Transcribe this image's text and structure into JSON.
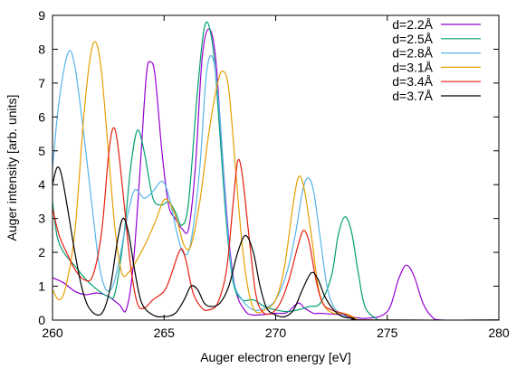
{
  "chart_data": {
    "type": "line",
    "title": "",
    "xlabel": "Auger electron energy [eV]",
    "ylabel": "Auger intensity [arb. units]",
    "xlim": [
      260,
      280
    ],
    "ylim": [
      0,
      9
    ],
    "xticks": [
      260,
      265,
      270,
      275,
      280
    ],
    "yticks": [
      0,
      1,
      2,
      3,
      4,
      5,
      6,
      7,
      8,
      9
    ],
    "grid": false,
    "legend_position": "top-right",
    "series": [
      {
        "name": "d=2.2Å",
        "color": "#9400d3",
        "points": [
          [
            260,
            1.25
          ],
          [
            260.5,
            1.1
          ],
          [
            261,
            0.85
          ],
          [
            261.5,
            0.75
          ],
          [
            262,
            0.8
          ],
          [
            262.5,
            0.7
          ],
          [
            263,
            0.45
          ],
          [
            263.3,
            0.3
          ],
          [
            263.6,
            1.5
          ],
          [
            263.9,
            4.2
          ],
          [
            264.2,
            7.2
          ],
          [
            264.4,
            7.62
          ],
          [
            264.6,
            7.2
          ],
          [
            264.9,
            5.0
          ],
          [
            265.2,
            3.4
          ],
          [
            265.5,
            3.0
          ],
          [
            265.8,
            2.7
          ],
          [
            266.1,
            2.7
          ],
          [
            266.4,
            4.5
          ],
          [
            266.7,
            7.7
          ],
          [
            267.0,
            8.6
          ],
          [
            267.3,
            7.8
          ],
          [
            267.6,
            5.0
          ],
          [
            267.9,
            2.4
          ],
          [
            268.2,
            0.9
          ],
          [
            268.6,
            0.3
          ],
          [
            269.0,
            0.15
          ],
          [
            270,
            0.2
          ],
          [
            270.5,
            0.22
          ],
          [
            271,
            0.5
          ],
          [
            271.3,
            0.35
          ],
          [
            271.7,
            0.2
          ],
          [
            272,
            0.2
          ],
          [
            273,
            0.15
          ],
          [
            274,
            0.05
          ],
          [
            275,
            0.25
          ],
          [
            275.5,
            1.2
          ],
          [
            275.85,
            1.62
          ],
          [
            276.2,
            1.3
          ],
          [
            276.6,
            0.5
          ],
          [
            277,
            0.1
          ],
          [
            277.5,
            0.0
          ],
          [
            280,
            0.0
          ]
        ]
      },
      {
        "name": "d=2.5Å",
        "color": "#009e73",
        "points": [
          [
            260,
            3.5
          ],
          [
            260.2,
            2.5
          ],
          [
            260.5,
            2.0
          ],
          [
            261,
            1.6
          ],
          [
            261.5,
            1.2
          ],
          [
            262,
            0.9
          ],
          [
            262.5,
            0.7
          ],
          [
            262.8,
            0.8
          ],
          [
            263.2,
            2.5
          ],
          [
            263.5,
            4.5
          ],
          [
            263.8,
            5.6
          ],
          [
            264.1,
            5.0
          ],
          [
            264.5,
            3.6
          ],
          [
            264.9,
            3.4
          ],
          [
            265.2,
            3.5
          ],
          [
            265.5,
            3.2
          ],
          [
            265.8,
            2.8
          ],
          [
            266.1,
            3.5
          ],
          [
            266.5,
            6.8
          ],
          [
            266.85,
            8.75
          ],
          [
            267.2,
            8.0
          ],
          [
            267.5,
            5.5
          ],
          [
            267.8,
            2.8
          ],
          [
            268.1,
            1.1
          ],
          [
            268.5,
            0.6
          ],
          [
            269,
            0.6
          ],
          [
            269.5,
            0.4
          ],
          [
            270,
            0.3
          ],
          [
            270.5,
            0.25
          ],
          [
            271,
            0.3
          ],
          [
            271.5,
            0.4
          ],
          [
            272,
            0.5
          ],
          [
            272.5,
            1.3
          ],
          [
            272.8,
            2.5
          ],
          [
            273.1,
            3.05
          ],
          [
            273.4,
            2.6
          ],
          [
            273.7,
            1.4
          ],
          [
            274,
            0.4
          ],
          [
            274.5,
            0.05
          ],
          [
            275,
            0.0
          ],
          [
            280,
            0.0
          ]
        ]
      },
      {
        "name": "d=2.8Å",
        "color": "#56b4e9",
        "points": [
          [
            260,
            4.5
          ],
          [
            260.3,
            6.5
          ],
          [
            260.7,
            7.9
          ],
          [
            261,
            7.5
          ],
          [
            261.4,
            5.5
          ],
          [
            261.8,
            3.2
          ],
          [
            262.1,
            1.6
          ],
          [
            262.4,
            0.9
          ],
          [
            262.7,
            1.0
          ],
          [
            263.0,
            1.8
          ],
          [
            263.4,
            3.2
          ],
          [
            263.7,
            3.85
          ],
          [
            264.1,
            3.6
          ],
          [
            264.5,
            3.8
          ],
          [
            264.9,
            4.1
          ],
          [
            265.2,
            3.7
          ],
          [
            265.6,
            2.5
          ],
          [
            265.9,
            1.95
          ],
          [
            266.2,
            2.3
          ],
          [
            266.6,
            4.5
          ],
          [
            266.9,
            7.3
          ],
          [
            267.2,
            7.7
          ],
          [
            267.5,
            6.0
          ],
          [
            267.8,
            3.0
          ],
          [
            268.1,
            1.2
          ],
          [
            268.5,
            0.6
          ],
          [
            269,
            0.3
          ],
          [
            269.5,
            0.35
          ],
          [
            270,
            0.6
          ],
          [
            270.5,
            1.4
          ],
          [
            270.9,
            2.6
          ],
          [
            271.2,
            3.8
          ],
          [
            271.45,
            4.2
          ],
          [
            271.7,
            3.8
          ],
          [
            272.0,
            2.4
          ],
          [
            272.3,
            1.0
          ],
          [
            272.6,
            0.4
          ],
          [
            273,
            0.15
          ],
          [
            273.5,
            0.05
          ],
          [
            274,
            0.0
          ],
          [
            280,
            0.0
          ]
        ]
      },
      {
        "name": "d=3.1Å",
        "color": "#e69f00",
        "points": [
          [
            260,
            0.9
          ],
          [
            260.3,
            0.6
          ],
          [
            260.6,
            1.0
          ],
          [
            261,
            2.6
          ],
          [
            261.4,
            6.0
          ],
          [
            261.7,
            7.8
          ],
          [
            261.95,
            8.2
          ],
          [
            262.2,
            7.3
          ],
          [
            262.5,
            5.0
          ],
          [
            262.8,
            2.7
          ],
          [
            263.1,
            1.4
          ],
          [
            263.4,
            1.4
          ],
          [
            263.8,
            1.8
          ],
          [
            264.2,
            2.3
          ],
          [
            264.6,
            2.9
          ],
          [
            265,
            3.55
          ],
          [
            265.3,
            3.4
          ],
          [
            265.6,
            2.9
          ],
          [
            265.9,
            2.2
          ],
          [
            266.2,
            2.2
          ],
          [
            266.6,
            3.5
          ],
          [
            267.0,
            5.5
          ],
          [
            267.4,
            7.0
          ],
          [
            267.65,
            7.35
          ],
          [
            267.9,
            6.8
          ],
          [
            268.2,
            4.5
          ],
          [
            268.5,
            2.2
          ],
          [
            268.8,
            0.8
          ],
          [
            269.1,
            0.25
          ],
          [
            269.5,
            0.3
          ],
          [
            270,
            0.6
          ],
          [
            270.4,
            1.6
          ],
          [
            270.8,
            3.5
          ],
          [
            271.05,
            4.25
          ],
          [
            271.3,
            3.8
          ],
          [
            271.6,
            2.5
          ],
          [
            271.9,
            1.0
          ],
          [
            272.2,
            0.4
          ],
          [
            272.6,
            0.2
          ],
          [
            273,
            0.2
          ],
          [
            273.3,
            0.15
          ],
          [
            273.6,
            0.05
          ],
          [
            274,
            0.0
          ],
          [
            280,
            0.0
          ]
        ]
      },
      {
        "name": "d=3.4Å",
        "color": "#e51e10",
        "points": [
          [
            260,
            3.3
          ],
          [
            260.3,
            2.5
          ],
          [
            260.7,
            1.9
          ],
          [
            261,
            1.5
          ],
          [
            261.4,
            1.2
          ],
          [
            261.8,
            1.3
          ],
          [
            262.2,
            2.6
          ],
          [
            262.5,
            4.8
          ],
          [
            262.7,
            5.65
          ],
          [
            262.9,
            5.3
          ],
          [
            263.2,
            3.5
          ],
          [
            263.5,
            1.6
          ],
          [
            263.8,
            0.5
          ],
          [
            264.1,
            0.35
          ],
          [
            264.5,
            0.6
          ],
          [
            265,
            0.85
          ],
          [
            265.3,
            1.3
          ],
          [
            265.6,
            1.9
          ],
          [
            265.8,
            2.1
          ],
          [
            266.0,
            1.7
          ],
          [
            266.3,
            0.8
          ],
          [
            266.7,
            0.35
          ],
          [
            267.0,
            0.3
          ],
          [
            267.4,
            0.5
          ],
          [
            267.8,
            1.5
          ],
          [
            268.1,
            3.5
          ],
          [
            268.3,
            4.7
          ],
          [
            268.5,
            4.3
          ],
          [
            268.8,
            2.5
          ],
          [
            269.1,
            0.8
          ],
          [
            269.4,
            0.25
          ],
          [
            269.8,
            0.2
          ],
          [
            270.2,
            0.5
          ],
          [
            270.6,
            1.2
          ],
          [
            271.0,
            2.2
          ],
          [
            271.25,
            2.65
          ],
          [
            271.5,
            2.3
          ],
          [
            271.8,
            1.2
          ],
          [
            272.1,
            0.5
          ],
          [
            272.5,
            0.3
          ],
          [
            273,
            0.2
          ],
          [
            273.5,
            0.05
          ],
          [
            274,
            0.0
          ],
          [
            280,
            0.0
          ]
        ]
      },
      {
        "name": "d=3.7Å",
        "color": "#000000",
        "points": [
          [
            260,
            4.0
          ],
          [
            260.2,
            4.5
          ],
          [
            260.4,
            4.3
          ],
          [
            260.7,
            3.2
          ],
          [
            261,
            2.0
          ],
          [
            261.3,
            1.0
          ],
          [
            261.6,
            0.4
          ],
          [
            262,
            0.15
          ],
          [
            262.3,
            0.3
          ],
          [
            262.6,
            1.0
          ],
          [
            262.9,
            2.3
          ],
          [
            263.15,
            3.0
          ],
          [
            263.4,
            2.6
          ],
          [
            263.7,
            1.4
          ],
          [
            264,
            0.5
          ],
          [
            264.5,
            0.15
          ],
          [
            265,
            0.1
          ],
          [
            265.5,
            0.2
          ],
          [
            265.9,
            0.6
          ],
          [
            266.2,
            1.0
          ],
          [
            266.5,
            0.9
          ],
          [
            266.8,
            0.5
          ],
          [
            267.1,
            0.4
          ],
          [
            267.5,
            0.5
          ],
          [
            267.9,
            1.0
          ],
          [
            268.3,
            2.0
          ],
          [
            268.65,
            2.5
          ],
          [
            269,
            2.0
          ],
          [
            269.3,
            1.0
          ],
          [
            269.6,
            0.35
          ],
          [
            270,
            0.15
          ],
          [
            270.4,
            0.1
          ],
          [
            270.8,
            0.3
          ],
          [
            271.2,
            0.9
          ],
          [
            271.6,
            1.4
          ],
          [
            271.9,
            1.2
          ],
          [
            272.2,
            0.7
          ],
          [
            272.6,
            0.3
          ],
          [
            273,
            0.1
          ],
          [
            273.5,
            0.05
          ],
          [
            274,
            0.0
          ],
          [
            280,
            0.0
          ]
        ]
      }
    ]
  }
}
